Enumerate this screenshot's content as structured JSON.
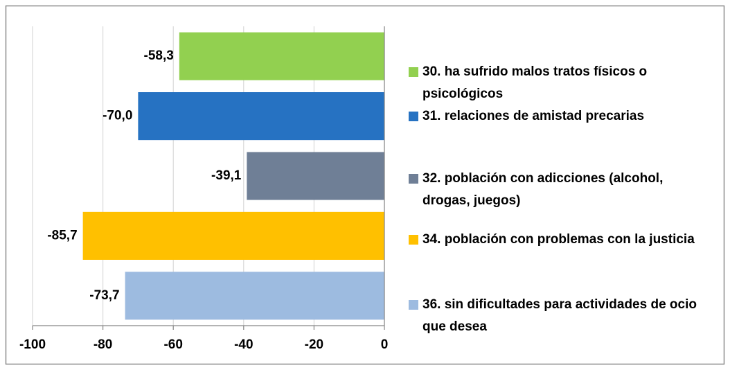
{
  "chart_data": {
    "type": "bar",
    "orientation": "horizontal",
    "categories": [
      null
    ],
    "series": [
      {
        "name": "30. ha sufrido malos tratos físicos o psicológicos",
        "color": "#92d050",
        "values": [
          -58.3
        ],
        "value_labels": [
          "-58,3"
        ]
      },
      {
        "name": "31. relaciones de amistad precarias",
        "color": "#2672c2",
        "values": [
          -70.0
        ],
        "value_labels": [
          "-70,0"
        ]
      },
      {
        "name": "32. población con adicciones (alcohol, drogas, juegos)",
        "color": "#6f7f96",
        "values": [
          -39.1
        ],
        "value_labels": [
          "-39,1"
        ]
      },
      {
        "name": "34. población con problemas con la justicia",
        "color": "#ffc000",
        "values": [
          -85.7
        ],
        "value_labels": [
          "-85,7"
        ]
      },
      {
        "name": "36. sin dificultades para actividades de ocio que desea",
        "color": "#9dbbe0",
        "values": [
          -73.7
        ],
        "value_labels": [
          "-73,7"
        ]
      }
    ],
    "xlim": [
      -100,
      0
    ],
    "xticks": [
      -100,
      -80,
      -60,
      -40,
      -20,
      0
    ],
    "grid": true,
    "legend": "right"
  }
}
